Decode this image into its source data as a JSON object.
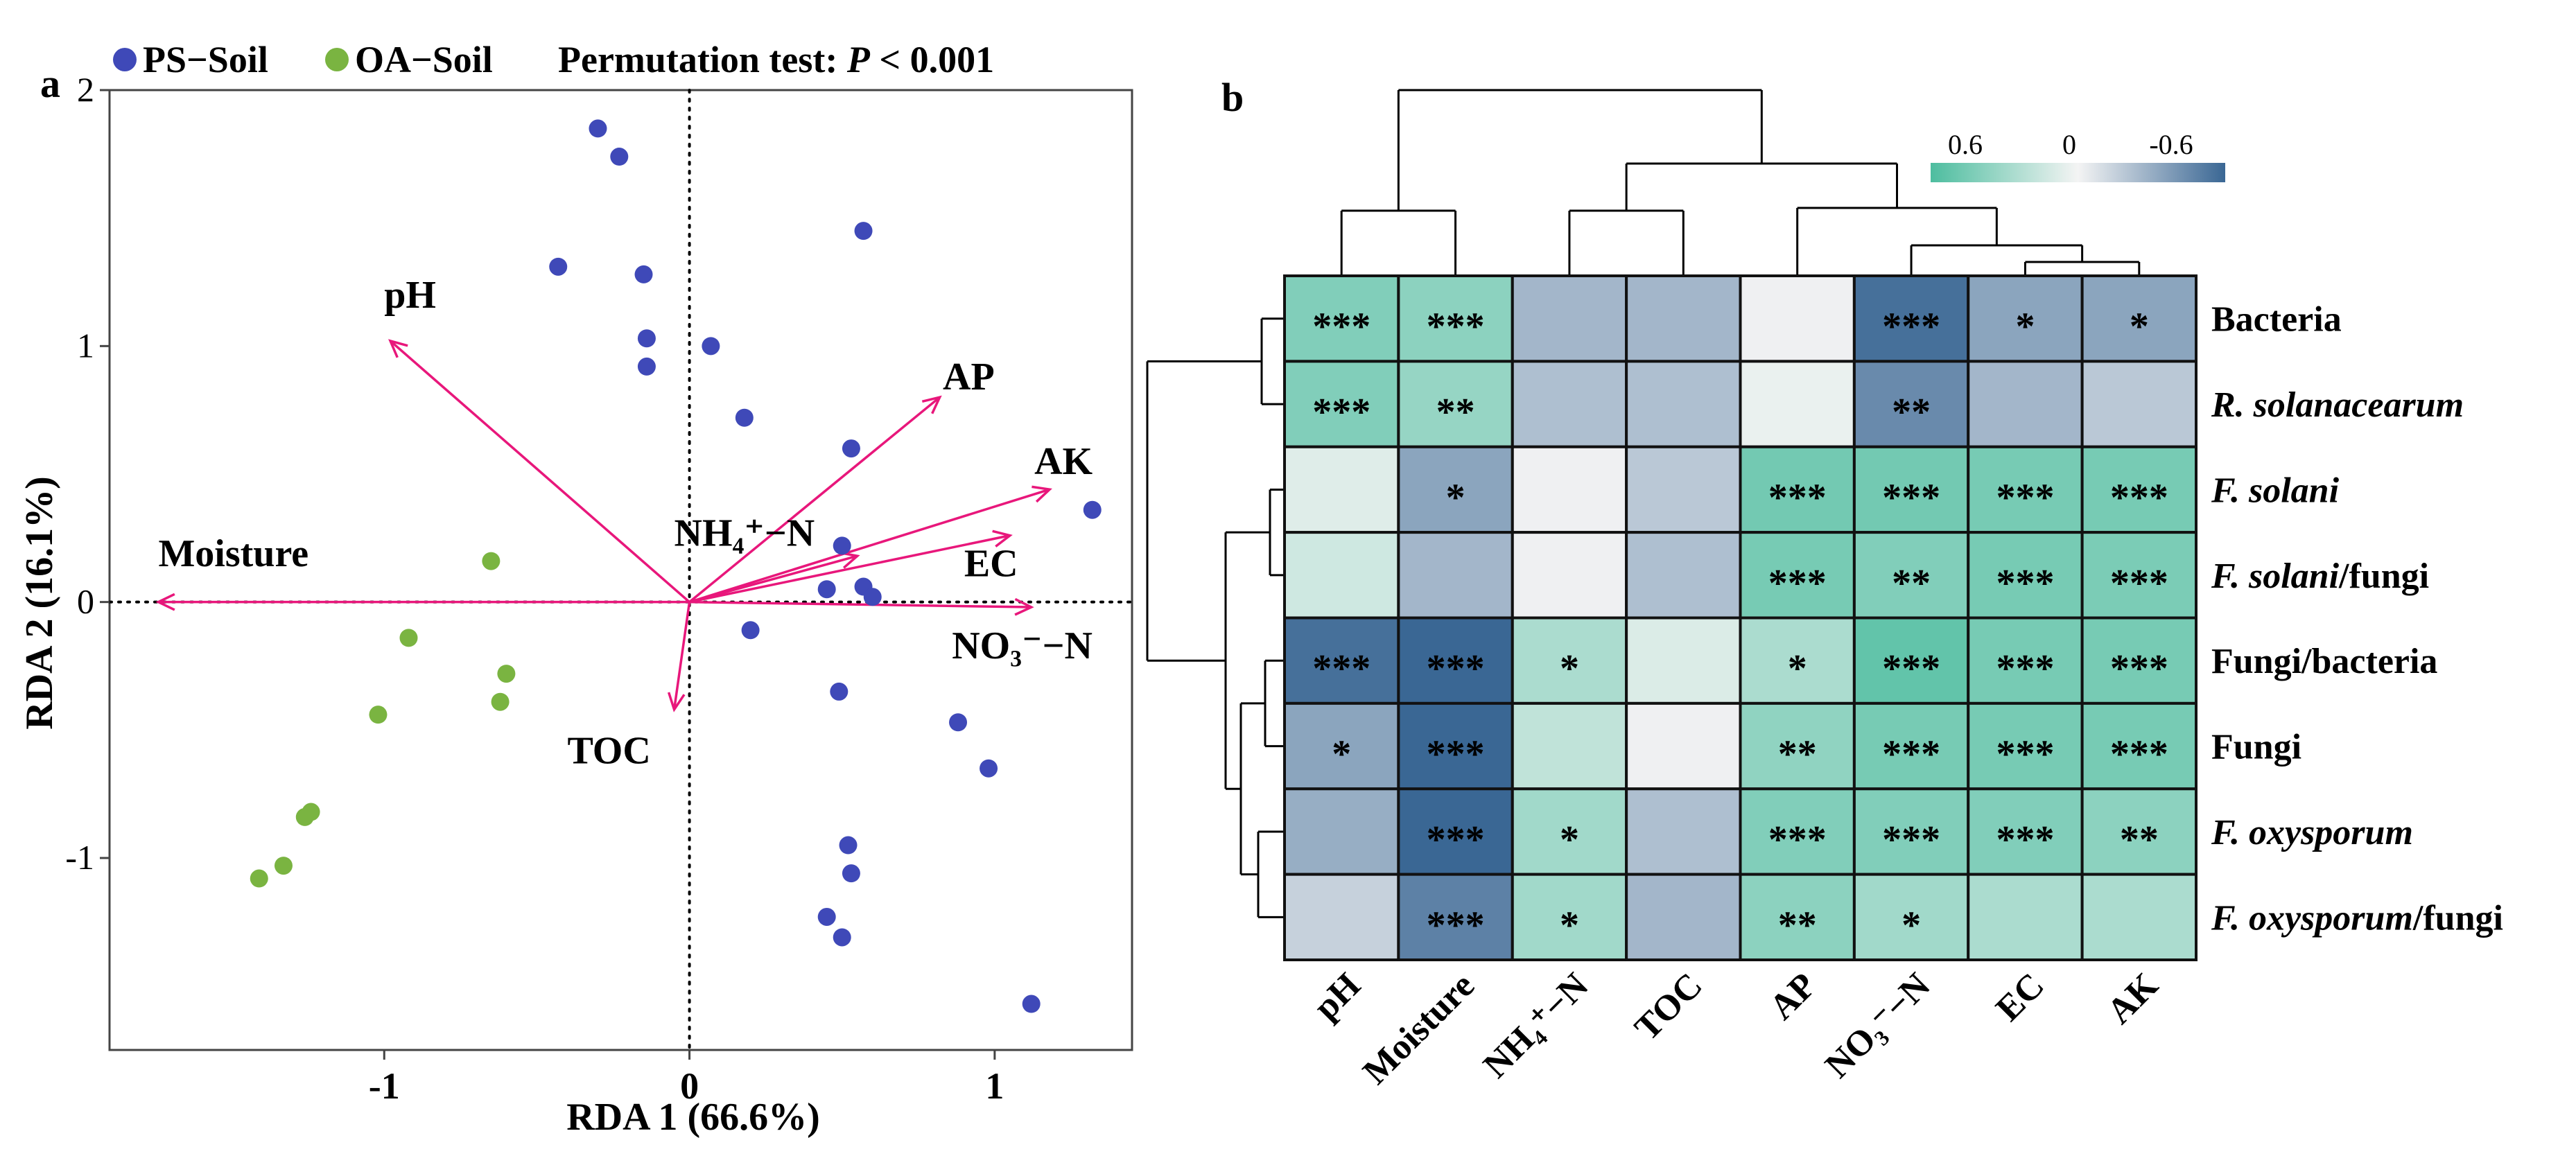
{
  "panel_a_label": "a",
  "panel_b_label": "b",
  "chart_data": [
    {
      "type": "scatter",
      "title": "Permutation test: P < 0.001",
      "title_prefix": "Permutation test: ",
      "title_p": "P",
      "title_suffix": " < 0.001",
      "xlabel": "RDA 1 (66.6%)",
      "ylabel": "RDA 2 (16.1%)",
      "xlim": [
        -1.9,
        1.45
      ],
      "ylim": [
        -1.75,
        2.0
      ],
      "xticks": [
        -1,
        0,
        1
      ],
      "xtick_labels": [
        "-1",
        "0",
        "1"
      ],
      "yticks": [
        -1,
        0,
        1,
        2
      ],
      "ytick_labels": [
        "-1",
        "0",
        "1",
        "2"
      ],
      "legend": [
        "PS−Soil",
        "OA−Soil"
      ],
      "colors": {
        "PS−Soil": "#3f49b8",
        "OA−Soil": "#7ab441",
        "arrow": "#e8177b"
      },
      "series": [
        {
          "name": "PS−Soil",
          "points": [
            [
              -0.3,
              1.85
            ],
            [
              -0.23,
              1.74
            ],
            [
              0.57,
              1.45
            ],
            [
              -0.43,
              1.31
            ],
            [
              -0.15,
              1.28
            ],
            [
              -0.14,
              1.03
            ],
            [
              0.07,
              1.0
            ],
            [
              -0.14,
              0.92
            ],
            [
              0.18,
              0.72
            ],
            [
              0.53,
              0.6
            ],
            [
              1.32,
              0.36
            ],
            [
              0.5,
              0.22
            ],
            [
              0.57,
              0.06
            ],
            [
              0.45,
              0.05
            ],
            [
              0.6,
              0.02
            ],
            [
              0.2,
              -0.11
            ],
            [
              0.49,
              -0.35
            ],
            [
              0.88,
              -0.47
            ],
            [
              0.98,
              -0.65
            ],
            [
              0.52,
              -0.95
            ],
            [
              0.53,
              -1.06
            ],
            [
              0.45,
              -1.23
            ],
            [
              0.5,
              -1.31
            ],
            [
              1.12,
              -1.57
            ]
          ]
        },
        {
          "name": "OA−Soil",
          "points": [
            [
              -0.65,
              0.16
            ],
            [
              -0.92,
              -0.14
            ],
            [
              -0.6,
              -0.28
            ],
            [
              -0.62,
              -0.39
            ],
            [
              -1.02,
              -0.44
            ],
            [
              -1.24,
              -0.82
            ],
            [
              -1.26,
              -0.84
            ],
            [
              -1.33,
              -1.03
            ],
            [
              -1.41,
              -1.08
            ]
          ]
        }
      ],
      "vectors": [
        {
          "label": "pH",
          "end": [
            -0.98,
            1.02
          ],
          "label_pos": [
            -1.0,
            1.15
          ],
          "anchor": "start"
        },
        {
          "label": "AP",
          "end": [
            0.82,
            0.8
          ],
          "label_pos": [
            0.83,
            0.83
          ],
          "anchor": "start"
        },
        {
          "label": "AK",
          "end": [
            1.18,
            0.44
          ],
          "label_pos": [
            1.13,
            0.5
          ],
          "anchor": "start"
        },
        {
          "label": "EC",
          "end": [
            1.05,
            0.26
          ],
          "label_pos": [
            0.9,
            0.1
          ],
          "anchor": "start"
        },
        {
          "label": "NO₃⁻−N",
          "end": [
            1.12,
            -0.02
          ],
          "label_pos": [
            0.86,
            -0.22
          ],
          "anchor": "start"
        },
        {
          "label": "NH₄⁺−N",
          "end": [
            0.55,
            0.18
          ],
          "label_pos": [
            -0.05,
            0.22
          ],
          "anchor": "start"
        },
        {
          "label": "Moisture",
          "end": [
            -1.74,
            0.0
          ],
          "label_pos": [
            -1.74,
            0.14
          ],
          "anchor": "start"
        },
        {
          "label": "TOC",
          "end": [
            -0.05,
            -0.42
          ],
          "label_pos": [
            -0.4,
            -0.63
          ],
          "anchor": "start"
        }
      ]
    },
    {
      "type": "heatmap",
      "columns": [
        "pH",
        "Moisture",
        "NH₄⁺−N",
        "TOC",
        "AP",
        "NO₃⁻−N",
        "EC",
        "AK"
      ],
      "rows": [
        "Bacteria",
        "R. solanacearum",
        "F. solani",
        "F. solani/fungi",
        "Fungi/bacteria",
        "Fungi",
        "F. oxysporum",
        "F. oxysporum/fungi"
      ],
      "row_labels": [
        {
          "italic": "",
          "normal": "Bacteria"
        },
        {
          "italic": "R. solanacearum",
          "normal": ""
        },
        {
          "italic": "F. solani",
          "normal": ""
        },
        {
          "italic": "F. solani",
          "normal": "/fungi"
        },
        {
          "italic": "",
          "normal": "Fungi/bacteria"
        },
        {
          "italic": "",
          "normal": "Fungi"
        },
        {
          "italic": "F. oxysporum",
          "normal": ""
        },
        {
          "italic": "F. oxysporum",
          "normal": "/fungi"
        }
      ],
      "values": [
        [
          0.55,
          0.5,
          -0.35,
          -0.35,
          -0.02,
          -0.75,
          -0.45,
          -0.45
        ],
        [
          0.55,
          0.45,
          -0.3,
          -0.3,
          0.05,
          -0.6,
          -0.35,
          -0.25
        ],
        [
          0.1,
          -0.45,
          -0.02,
          -0.25,
          0.62,
          0.62,
          0.6,
          0.6
        ],
        [
          0.18,
          -0.35,
          -0.02,
          -0.3,
          0.6,
          0.55,
          0.6,
          0.58
        ],
        [
          -0.75,
          -0.85,
          0.35,
          0.12,
          0.35,
          0.7,
          0.6,
          0.6
        ],
        [
          -0.45,
          -0.8,
          0.25,
          -0.02,
          0.48,
          0.6,
          0.6,
          0.6
        ],
        [
          -0.4,
          -0.85,
          0.4,
          -0.3,
          0.55,
          0.55,
          0.55,
          0.5
        ],
        [
          -0.2,
          -0.65,
          0.4,
          -0.35,
          0.5,
          0.4,
          0.35,
          0.35
        ]
      ],
      "significance": [
        [
          "***",
          "***",
          "",
          "",
          "",
          "***",
          "*",
          "*"
        ],
        [
          "***",
          "**",
          "",
          "",
          "",
          "**",
          "",
          ""
        ],
        [
          "",
          "*",
          "",
          "",
          "***",
          "***",
          "***",
          "***"
        ],
        [
          "",
          "",
          "",
          "",
          "***",
          "**",
          "***",
          "***"
        ],
        [
          "***",
          "***",
          "*",
          "",
          "*",
          "***",
          "***",
          "***"
        ],
        [
          "*",
          "***",
          "",
          "",
          "**",
          "***",
          "***",
          "***"
        ],
        [
          "",
          "***",
          "*",
          "",
          "***",
          "***",
          "***",
          "**"
        ],
        [
          "",
          "***",
          "*",
          "",
          "**",
          "*",
          "",
          ""
        ]
      ],
      "colorbar": {
        "labels": [
          "0.6",
          "0",
          "-0.6"
        ],
        "range": [
          0.8,
          -0.8
        ],
        "low_color": "#3a6794",
        "mid_color": "#f4f4f4",
        "high_color": "#4dbd9f"
      },
      "col_dendrogram": [
        [
          0,
          1
        ],
        [
          2,
          3
        ],
        [
          4,
          [
            5,
            [
              6,
              7
            ]
          ]
        ]
      ],
      "row_dendrogram": [
        [
          0,
          1
        ],
        [
          [
            2,
            3
          ],
          [
            [
              4,
              5
            ],
            [
              6,
              7
            ]
          ]
        ]
      ]
    }
  ]
}
